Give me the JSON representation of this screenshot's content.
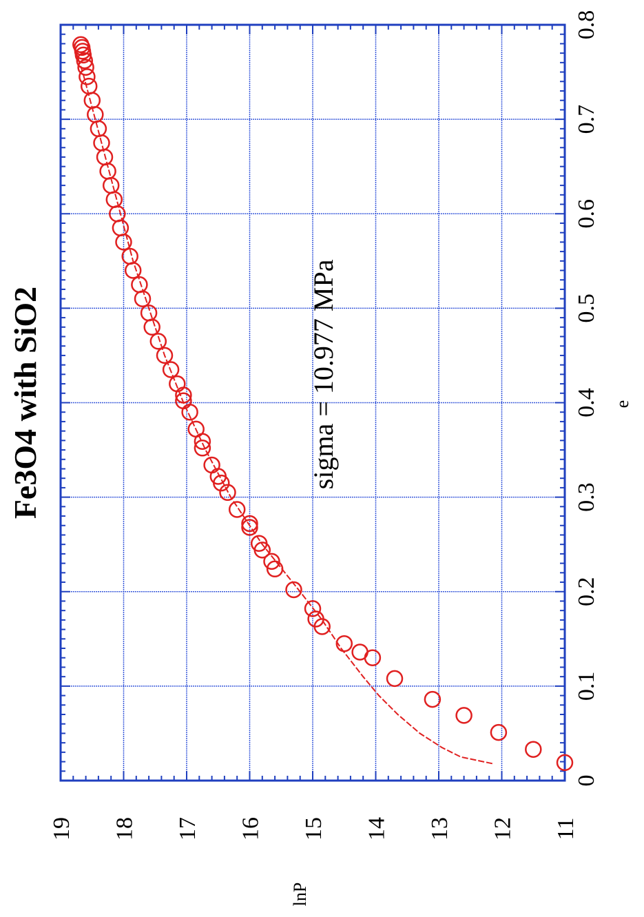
{
  "chart_data": {
    "type": "scatter",
    "orientation": "rotated-90-clockwise",
    "title": "Fe3O4 with SiO2",
    "xlabel": "e",
    "ylabel": "lnP",
    "annotation": "sigma = 10.977 MPa",
    "xlim": [
      0,
      0.8
    ],
    "ylim": [
      11,
      19
    ],
    "x_ticks": [
      "0",
      "0.1",
      "0.2",
      "0.3",
      "0.4",
      "0.5",
      "0.6",
      "0.7",
      "0.8"
    ],
    "y_ticks": [
      "11",
      "12",
      "13",
      "14",
      "15",
      "16",
      "17",
      "18",
      "19"
    ],
    "grid": true,
    "colors": {
      "frame": "#1f3fbf",
      "grid": "#3b5bdb",
      "data": "#e02020"
    },
    "series": [
      {
        "kind": "points",
        "marker": "open-circle",
        "x": [
          0.019,
          0.033,
          0.051,
          0.069,
          0.086,
          0.108,
          0.13,
          0.136,
          0.145,
          0.163,
          0.171,
          0.182,
          0.202,
          0.224,
          0.232,
          0.244,
          0.251,
          0.268,
          0.272,
          0.287,
          0.305,
          0.315,
          0.322,
          0.334,
          0.352,
          0.359,
          0.372,
          0.39,
          0.402,
          0.408,
          0.42,
          0.435,
          0.45,
          0.465,
          0.48,
          0.495,
          0.51,
          0.525,
          0.54,
          0.555,
          0.57,
          0.585,
          0.6,
          0.615,
          0.63,
          0.645,
          0.66,
          0.675,
          0.69,
          0.705,
          0.72,
          0.735,
          0.745,
          0.755,
          0.762,
          0.768,
          0.772,
          0.776,
          0.779
        ],
        "y": [
          11.0,
          11.5,
          12.05,
          12.6,
          13.1,
          13.7,
          14.05,
          14.25,
          14.5,
          14.85,
          14.95,
          15.0,
          15.3,
          15.6,
          15.65,
          15.8,
          15.85,
          16.0,
          16.0,
          16.2,
          16.35,
          16.45,
          16.5,
          16.6,
          16.75,
          16.75,
          16.85,
          16.95,
          17.05,
          17.05,
          17.15,
          17.25,
          17.35,
          17.45,
          17.55,
          17.6,
          17.7,
          17.75,
          17.85,
          17.9,
          18.0,
          18.05,
          18.1,
          18.15,
          18.2,
          18.25,
          18.3,
          18.35,
          18.4,
          18.45,
          18.5,
          18.55,
          18.58,
          18.6,
          18.62,
          18.64,
          18.65,
          18.66,
          18.68
        ]
      },
      {
        "kind": "line",
        "style": "dashed",
        "x": [
          0.018,
          0.025,
          0.035,
          0.05,
          0.07,
          0.09,
          0.11,
          0.14,
          0.17,
          0.2,
          0.25,
          0.3,
          0.35,
          0.4,
          0.45,
          0.5,
          0.55,
          0.6,
          0.65,
          0.7,
          0.75,
          0.78
        ],
        "y": [
          12.15,
          12.65,
          12.95,
          13.3,
          13.65,
          13.95,
          14.2,
          14.55,
          14.85,
          15.2,
          15.8,
          16.3,
          16.7,
          17.05,
          17.35,
          17.6,
          17.85,
          18.05,
          18.25,
          18.45,
          18.65,
          18.8
        ]
      }
    ]
  }
}
